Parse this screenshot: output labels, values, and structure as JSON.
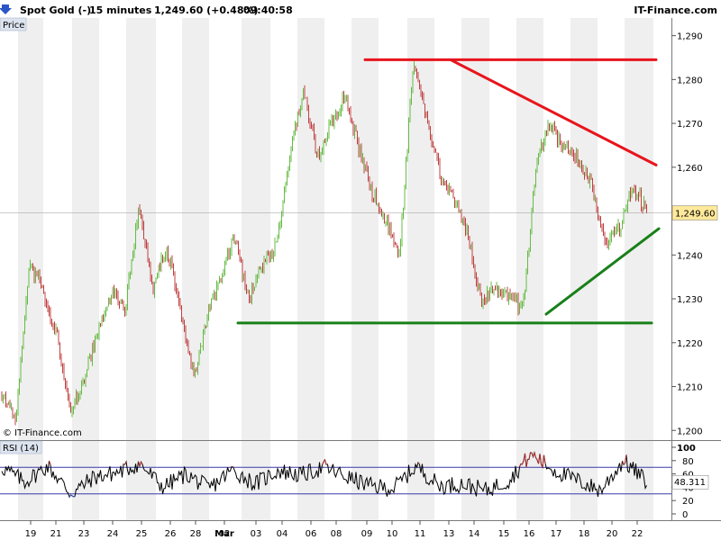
{
  "header": {
    "instrument": "Spot Gold (-)",
    "interval": "15 minutes",
    "last_change": "1,249.60 (+0.48%)",
    "time": "09:40:58",
    "brand": "IT-Finance.com"
  },
  "price_panel": {
    "label": "Price",
    "copyright": "© IT-Finance.com",
    "last_price": 1249.6,
    "last_price_label": "1,249.60",
    "y_ticks": [
      1290,
      1280,
      1270,
      1260,
      1250,
      1240,
      1230,
      1220,
      1210,
      1200
    ],
    "y_tick_labels": [
      "1,290",
      "1,280",
      "1,270",
      "1,260",
      "1,250",
      "1,240",
      "1,230",
      "1,220",
      "1,210",
      "1,200"
    ],
    "colors": {
      "up": "#66bb44",
      "down": "#c04040",
      "resistance": "#e8141c",
      "support": "#188018",
      "last_tag": "#ffe99a",
      "band": "#efefef"
    }
  },
  "rsi_panel": {
    "label": "RSI (14)",
    "last_value": 48.311,
    "last_value_label": "48.311",
    "y_ticks": [
      100,
      80,
      60,
      40,
      20,
      0
    ],
    "y_tick_labels": [
      "100",
      "80",
      "60",
      "40",
      "20",
      "0"
    ],
    "overbought": 70,
    "oversold": 30
  },
  "x_axis": {
    "dates": [
      "19",
      "21",
      "23",
      "24",
      "25",
      "26",
      "28",
      "Mar",
      "02",
      "03",
      "04",
      "06",
      "08",
      "09",
      "10",
      "11",
      "13",
      "14",
      "15",
      "16",
      "17",
      "18",
      "20",
      "22"
    ]
  },
  "chart_data": {
    "type": "candlestick",
    "title": "Spot Gold (-)",
    "interval": "15 minutes",
    "y_unit": "USD",
    "ylim": [
      1198,
      1293
    ],
    "x_ticks": [
      "19",
      "21",
      "23",
      "24",
      "25",
      "26",
      "28",
      "Mar",
      "02",
      "03",
      "04",
      "06",
      "08",
      "09",
      "10",
      "11",
      "13",
      "14",
      "15",
      "16",
      "17",
      "18",
      "20",
      "22"
    ],
    "approx_close_path": [
      {
        "date": "19",
        "close": 1208
      },
      {
        "date": "19",
        "close": 1202
      },
      {
        "date": "19",
        "close": 1238
      },
      {
        "date": "21",
        "close": 1232
      },
      {
        "date": "21",
        "close": 1222
      },
      {
        "date": "21",
        "close": 1204
      },
      {
        "date": "23",
        "close": 1212
      },
      {
        "date": "23",
        "close": 1222
      },
      {
        "date": "24",
        "close": 1232
      },
      {
        "date": "24",
        "close": 1228
      },
      {
        "date": "25",
        "close": 1252
      },
      {
        "date": "25",
        "close": 1232
      },
      {
        "date": "26",
        "close": 1242
      },
      {
        "date": "26",
        "close": 1228
      },
      {
        "date": "28",
        "close": 1212
      },
      {
        "date": "28",
        "close": 1226
      },
      {
        "date": "Mar",
        "close": 1236
      },
      {
        "date": "Mar",
        "close": 1245
      },
      {
        "date": "02",
        "close": 1229
      },
      {
        "date": "02",
        "close": 1238
      },
      {
        "date": "03",
        "close": 1242
      },
      {
        "date": "04",
        "close": 1262
      },
      {
        "date": "06",
        "close": 1278
      },
      {
        "date": "06",
        "close": 1262
      },
      {
        "date": "08",
        "close": 1270
      },
      {
        "date": "08",
        "close": 1276
      },
      {
        "date": "09",
        "close": 1265
      },
      {
        "date": "09",
        "close": 1254
      },
      {
        "date": "10",
        "close": 1248
      },
      {
        "date": "10",
        "close": 1240
      },
      {
        "date": "11",
        "close": 1284
      },
      {
        "date": "11",
        "close": 1270
      },
      {
        "date": "13",
        "close": 1258
      },
      {
        "date": "13",
        "close": 1252
      },
      {
        "date": "14",
        "close": 1244
      },
      {
        "date": "15",
        "close": 1229
      },
      {
        "date": "15",
        "close": 1233
      },
      {
        "date": "16",
        "close": 1230
      },
      {
        "date": "16",
        "close": 1228
      },
      {
        "date": "17",
        "close": 1262
      },
      {
        "date": "17",
        "close": 1270
      },
      {
        "date": "18",
        "close": 1264
      },
      {
        "date": "18",
        "close": 1262
      },
      {
        "date": "20",
        "close": 1256
      },
      {
        "date": "20",
        "close": 1242
      },
      {
        "date": "22",
        "close": 1246
      },
      {
        "date": "22",
        "close": 1256
      },
      {
        "date": "22",
        "close": 1249.6
      }
    ],
    "approx_rsi_path": [
      {
        "date": "19",
        "rsi": 70
      },
      {
        "date": "19",
        "rsi": 48
      },
      {
        "date": "21",
        "rsi": 72
      },
      {
        "date": "21",
        "rsi": 30
      },
      {
        "date": "23",
        "rsi": 55
      },
      {
        "date": "24",
        "rsi": 62
      },
      {
        "date": "25",
        "rsi": 75
      },
      {
        "date": "25",
        "rsi": 40
      },
      {
        "date": "26",
        "rsi": 60
      },
      {
        "date": "28",
        "rsi": 38
      },
      {
        "date": "Mar",
        "rsi": 66
      },
      {
        "date": "02",
        "rsi": 45
      },
      {
        "date": "03",
        "rsi": 65
      },
      {
        "date": "04",
        "rsi": 58
      },
      {
        "date": "06",
        "rsi": 70
      },
      {
        "date": "08",
        "rsi": 55
      },
      {
        "date": "09",
        "rsi": 42
      },
      {
        "date": "10",
        "rsi": 38
      },
      {
        "date": "11",
        "rsi": 72
      },
      {
        "date": "13",
        "rsi": 42
      },
      {
        "date": "14",
        "rsi": 45
      },
      {
        "date": "15",
        "rsi": 35
      },
      {
        "date": "16",
        "rsi": 50
      },
      {
        "date": "16",
        "rsi": 90
      },
      {
        "date": "17",
        "rsi": 65
      },
      {
        "date": "18",
        "rsi": 50
      },
      {
        "date": "20",
        "rsi": 35
      },
      {
        "date": "22",
        "rsi": 80
      },
      {
        "date": "22",
        "rsi": 48.311
      }
    ],
    "trendlines": [
      {
        "kind": "resistance-horizontal",
        "color": "#e8141c",
        "price": 1284.5
      },
      {
        "kind": "resistance-descending",
        "color": "#e8141c",
        "from": {
          "date": "11",
          "price": 1284.5
        },
        "to": {
          "date": "22",
          "price": 1260.5
        }
      },
      {
        "kind": "support-horizontal",
        "color": "#188018",
        "price": 1224.5
      },
      {
        "kind": "support-ascending",
        "color": "#188018",
        "from": {
          "date": "16",
          "price": 1226.5
        },
        "to": {
          "date": "22",
          "price": 1246
        }
      }
    ]
  }
}
